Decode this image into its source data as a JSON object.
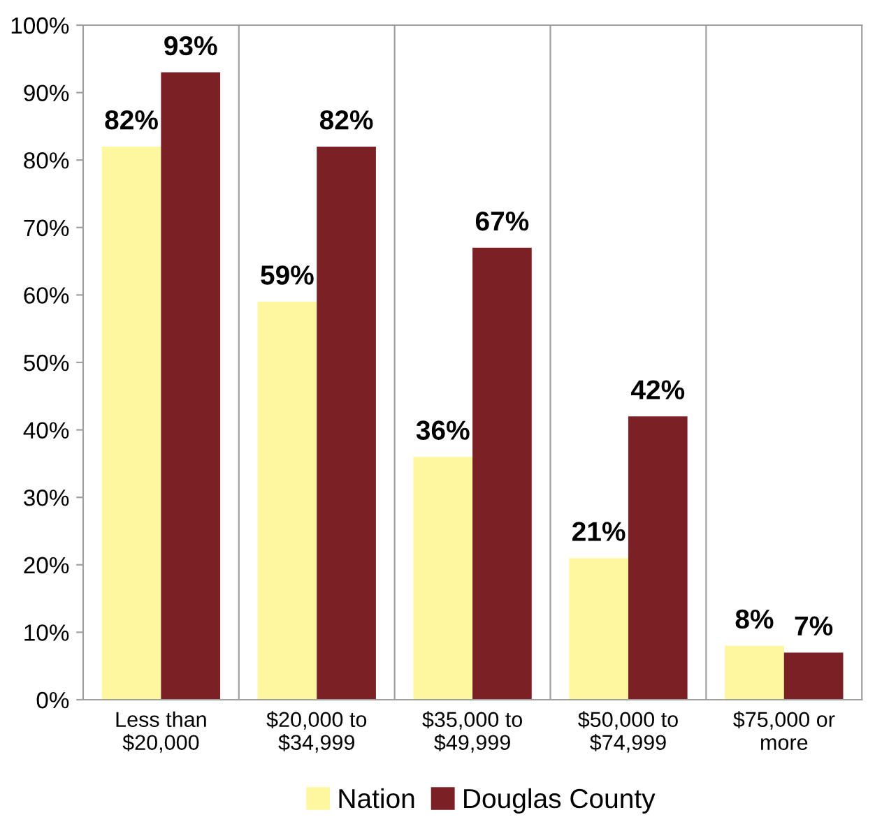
{
  "chart_data": {
    "type": "bar",
    "categories": [
      "Less than\n$20,000",
      "$20,000 to\n$34,999",
      "$35,000 to\n$49,999",
      "$50,000 to\n$74,999",
      "$75,000 or\nmore"
    ],
    "series": [
      {
        "name": "Nation",
        "color": "#fff7a0",
        "values": [
          82,
          59,
          36,
          21,
          8
        ],
        "value_labels": [
          "82%",
          "59%",
          "36%",
          "21%",
          "8%"
        ]
      },
      {
        "name": "Douglas County",
        "color": "#7b2125",
        "values": [
          93,
          82,
          67,
          42,
          7
        ],
        "value_labels": [
          "93%",
          "82%",
          "67%",
          "42%",
          "7%"
        ]
      }
    ],
    "ylim": [
      0,
      100
    ],
    "yticks": [
      {
        "value": 0,
        "label": "0%"
      },
      {
        "value": 10,
        "label": "10%"
      },
      {
        "value": 20,
        "label": "20%"
      },
      {
        "value": 30,
        "label": "30%"
      },
      {
        "value": 40,
        "label": "40%"
      },
      {
        "value": 50,
        "label": "50%"
      },
      {
        "value": 60,
        "label": "60%"
      },
      {
        "value": 70,
        "label": "70%"
      },
      {
        "value": 80,
        "label": "80%"
      },
      {
        "value": 90,
        "label": "90%"
      },
      {
        "value": 100,
        "label": "100%"
      }
    ],
    "grid": "x",
    "legend": "bottom"
  }
}
